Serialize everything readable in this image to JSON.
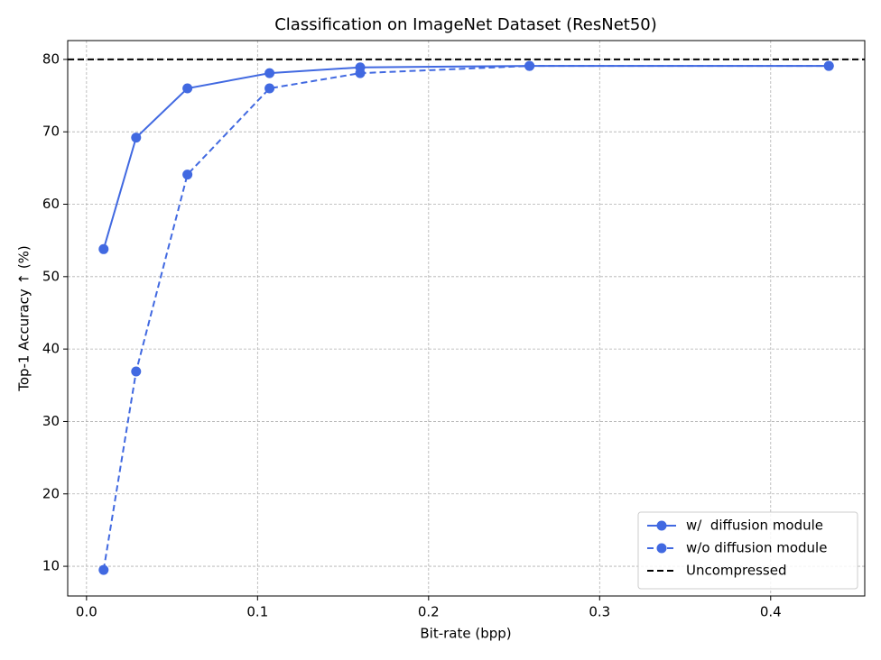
{
  "chart_data": {
    "type": "line",
    "title": "Classification on ImageNet Dataset (ResNet50)",
    "x_label": "Bit-rate (bpp)",
    "y_label": "Top-1 Accuracy ↑ (%)",
    "x": [
      0.01,
      0.029,
      0.059,
      0.107,
      0.16,
      0.259,
      0.434
    ],
    "series": [
      {
        "name": "w/  diffusion module",
        "color": "#4169e1",
        "dash": "solid",
        "values": [
          53.8,
          69.2,
          76.0,
          78.1,
          78.9,
          79.1,
          79.1
        ]
      },
      {
        "name": "w/o diffusion module",
        "color": "#4169e1",
        "dash": "dashed",
        "values": [
          9.5,
          36.9,
          64.1,
          76.0,
          78.1,
          79.1,
          79.1
        ]
      }
    ],
    "hlines": [
      {
        "name": "Uncompressed",
        "color": "#000000",
        "dash": "dashed",
        "value": 80
      }
    ],
    "xlim": [
      -0.011,
      0.455
    ],
    "ylim": [
      5.9,
      82.6
    ],
    "xticks": [
      {
        "value": 0,
        "label": "0.0"
      },
      0.1,
      0.2,
      0.3,
      0.4
    ],
    "yticks": [
      10,
      20,
      30,
      40,
      50,
      60,
      70,
      80
    ],
    "grid": true,
    "legend": "lower right"
  }
}
